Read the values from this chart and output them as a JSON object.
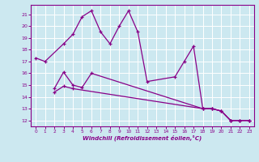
{
  "xlabel": "Windchill (Refroidissement éolien,°C)",
  "bg_color": "#cce8f0",
  "grid_color": "#ffffff",
  "line_color": "#880088",
  "xlim": [
    -0.5,
    23.5
  ],
  "ylim": [
    11.5,
    21.8
  ],
  "yticks": [
    12,
    13,
    14,
    15,
    16,
    17,
    18,
    19,
    20,
    21
  ],
  "xticks": [
    0,
    1,
    2,
    3,
    4,
    5,
    6,
    7,
    8,
    9,
    10,
    11,
    12,
    13,
    14,
    15,
    16,
    17,
    18,
    19,
    20,
    21,
    22,
    23
  ],
  "line1_x": [
    0,
    1,
    3,
    4,
    5,
    6,
    7,
    8,
    9,
    10,
    11,
    12,
    15,
    16,
    17,
    18,
    19,
    20,
    21,
    22,
    23
  ],
  "line1_y": [
    17.3,
    17.0,
    18.5,
    19.3,
    20.8,
    21.3,
    19.5,
    18.5,
    20.0,
    21.3,
    19.5,
    15.3,
    15.7,
    17.0,
    18.3,
    13.0,
    13.0,
    12.8,
    12.0,
    12.0,
    12.0
  ],
  "line2_x": [
    2,
    3,
    4,
    5,
    6,
    18,
    19,
    20,
    21,
    22,
    23
  ],
  "line2_y": [
    14.7,
    16.1,
    15.0,
    14.8,
    16.0,
    13.0,
    13.0,
    12.8,
    12.0,
    12.0,
    12.0
  ],
  "line3_x": [
    2,
    3,
    4,
    18,
    19,
    20,
    21,
    22,
    23
  ],
  "line3_y": [
    14.4,
    14.9,
    14.7,
    13.0,
    13.0,
    12.8,
    12.0,
    12.0,
    12.0
  ]
}
